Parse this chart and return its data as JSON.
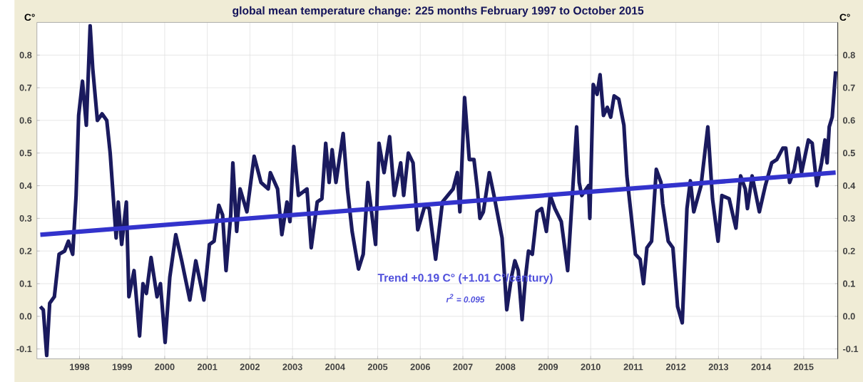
{
  "chart_data": {
    "type": "line",
    "title": "global mean temperature change: 225 months February 1997 to October 2015",
    "ylabel": "C°",
    "y2label": "C°",
    "xlim": [
      1997.0,
      2015.8
    ],
    "ylim": [
      -0.13,
      0.9
    ],
    "y2lim": [
      -0.13,
      0.9
    ],
    "xticks": [
      1998,
      1999,
      2000,
      2001,
      2002,
      2003,
      2004,
      2005,
      2006,
      2007,
      2008,
      2009,
      2010,
      2011,
      2012,
      2013,
      2014,
      2015
    ],
    "yticks": [
      -0.1,
      {
        "value": 0,
        "label": "0.0"
      },
      0.1,
      0.2,
      0.3,
      0.4,
      0.5,
      0.6,
      0.7,
      0.8
    ],
    "y2ticks": [
      -0.1,
      {
        "value": 0,
        "label": "0.0"
      },
      0.1,
      0.2,
      0.3,
      0.4,
      0.5,
      0.6,
      0.7,
      0.8
    ],
    "grid": true,
    "annotations": [
      "Trend +0.19 C° (+1.01 C°/century)",
      "r$^{2}$ = 0.095"
    ],
    "series": [
      {
        "color": "#1a1a5e",
        "x": [
          1997.08,
          1997.15,
          1997.23,
          1997.3,
          1997.41,
          1997.52,
          1997.65,
          1997.74,
          1997.84,
          1997.92,
          1997.98,
          1998.07,
          1998.16,
          1998.25,
          1998.31,
          1998.42,
          1998.53,
          1998.64,
          1998.72,
          1998.86,
          1998.91,
          1998.99,
          1999.1,
          1999.16,
          1999.28,
          1999.41,
          1999.49,
          1999.57,
          1999.68,
          1999.82,
          1999.9,
          2000.01,
          2000.12,
          2000.26,
          2000.4,
          2000.59,
          2000.73,
          2000.92,
          2001.05,
          2001.16,
          2001.27,
          2001.36,
          2001.44,
          2001.55,
          2001.6,
          2001.69,
          2001.77,
          2001.93,
          2002.1,
          2002.26,
          2002.43,
          2002.48,
          2002.65,
          2002.75,
          2002.87,
          2002.94,
          2003.03,
          2003.14,
          2003.34,
          2003.44,
          2003.58,
          2003.69,
          2003.78,
          2003.86,
          2003.93,
          2004.02,
          2004.19,
          2004.29,
          2004.4,
          2004.55,
          2004.66,
          2004.77,
          2004.95,
          2005.03,
          2005.15,
          2005.28,
          2005.39,
          2005.54,
          2005.61,
          2005.72,
          2005.83,
          2005.94,
          2006.11,
          2006.21,
          2006.36,
          2006.52,
          2006.77,
          2006.87,
          2006.93,
          2007.04,
          2007.15,
          2007.26,
          2007.34,
          2007.4,
          2007.48,
          2007.62,
          2007.73,
          2007.92,
          2008.03,
          2008.14,
          2008.22,
          2008.3,
          2008.39,
          2008.47,
          2008.54,
          2008.63,
          2008.74,
          2008.85,
          2008.96,
          2009.05,
          2009.16,
          2009.31,
          2009.46,
          2009.57,
          2009.67,
          2009.73,
          2009.79,
          2009.95,
          2009.98,
          2010.06,
          2010.15,
          2010.22,
          2010.3,
          2010.39,
          2010.47,
          2010.55,
          2010.66,
          2010.78,
          2010.85,
          2011.05,
          2011.16,
          2011.24,
          2011.32,
          2011.43,
          2011.54,
          2011.65,
          2011.69,
          2011.82,
          2011.93,
          2012.04,
          2012.15,
          2012.26,
          2012.34,
          2012.42,
          2012.59,
          2012.75,
          2012.86,
          2012.99,
          2013.08,
          2013.25,
          2013.41,
          2013.52,
          2013.63,
          2013.68,
          2013.79,
          2013.96,
          2014.1,
          2014.25,
          2014.37,
          2014.51,
          2014.58,
          2014.67,
          2014.78,
          2014.87,
          2014.95,
          2015.11,
          2015.2,
          2015.31,
          2015.42,
          2015.5,
          2015.55,
          2015.6,
          2015.67,
          2015.75
        ],
        "values": [
          0.03,
          0.02,
          -0.12,
          0.04,
          0.06,
          0.19,
          0.2,
          0.23,
          0.19,
          0.37,
          0.615,
          0.72,
          0.585,
          0.89,
          0.76,
          0.6,
          0.62,
          0.6,
          0.5,
          0.24,
          0.35,
          0.22,
          0.35,
          0.06,
          0.14,
          -0.06,
          0.1,
          0.07,
          0.18,
          0.06,
          0.1,
          -0.08,
          0.12,
          0.25,
          0.17,
          0.05,
          0.17,
          0.05,
          0.22,
          0.23,
          0.34,
          0.31,
          0.14,
          0.31,
          0.47,
          0.26,
          0.39,
          0.32,
          0.49,
          0.41,
          0.39,
          0.44,
          0.39,
          0.25,
          0.35,
          0.29,
          0.52,
          0.37,
          0.39,
          0.21,
          0.35,
          0.36,
          0.53,
          0.41,
          0.51,
          0.41,
          0.56,
          0.39,
          0.26,
          0.145,
          0.19,
          0.41,
          0.22,
          0.53,
          0.44,
          0.55,
          0.37,
          0.47,
          0.37,
          0.5,
          0.47,
          0.265,
          0.34,
          0.33,
          0.175,
          0.35,
          0.39,
          0.44,
          0.32,
          0.67,
          0.48,
          0.48,
          0.39,
          0.3,
          0.32,
          0.44,
          0.37,
          0.24,
          0.02,
          0.12,
          0.17,
          0.14,
          -0.01,
          0.12,
          0.2,
          0.19,
          0.32,
          0.33,
          0.26,
          0.37,
          0.33,
          0.29,
          0.14,
          0.37,
          0.58,
          0.41,
          0.37,
          0.4,
          0.3,
          0.71,
          0.68,
          0.74,
          0.615,
          0.64,
          0.61,
          0.675,
          0.665,
          0.585,
          0.43,
          0.19,
          0.175,
          0.1,
          0.21,
          0.23,
          0.45,
          0.41,
          0.345,
          0.23,
          0.21,
          0.03,
          -0.02,
          0.33,
          0.415,
          0.32,
          0.4,
          0.58,
          0.36,
          0.23,
          0.37,
          0.36,
          0.27,
          0.43,
          0.39,
          0.33,
          0.43,
          0.32,
          0.4,
          0.47,
          0.48,
          0.515,
          0.515,
          0.41,
          0.45,
          0.515,
          0.44,
          0.54,
          0.53,
          0.4,
          0.47,
          0.54,
          0.47,
          0.58,
          0.61,
          0.75
        ]
      },
      {
        "type": "line",
        "color": "#3333cc",
        "x": [
          1997.08,
          2015.75
        ],
        "values": [
          0.25,
          0.44
        ]
      }
    ]
  }
}
